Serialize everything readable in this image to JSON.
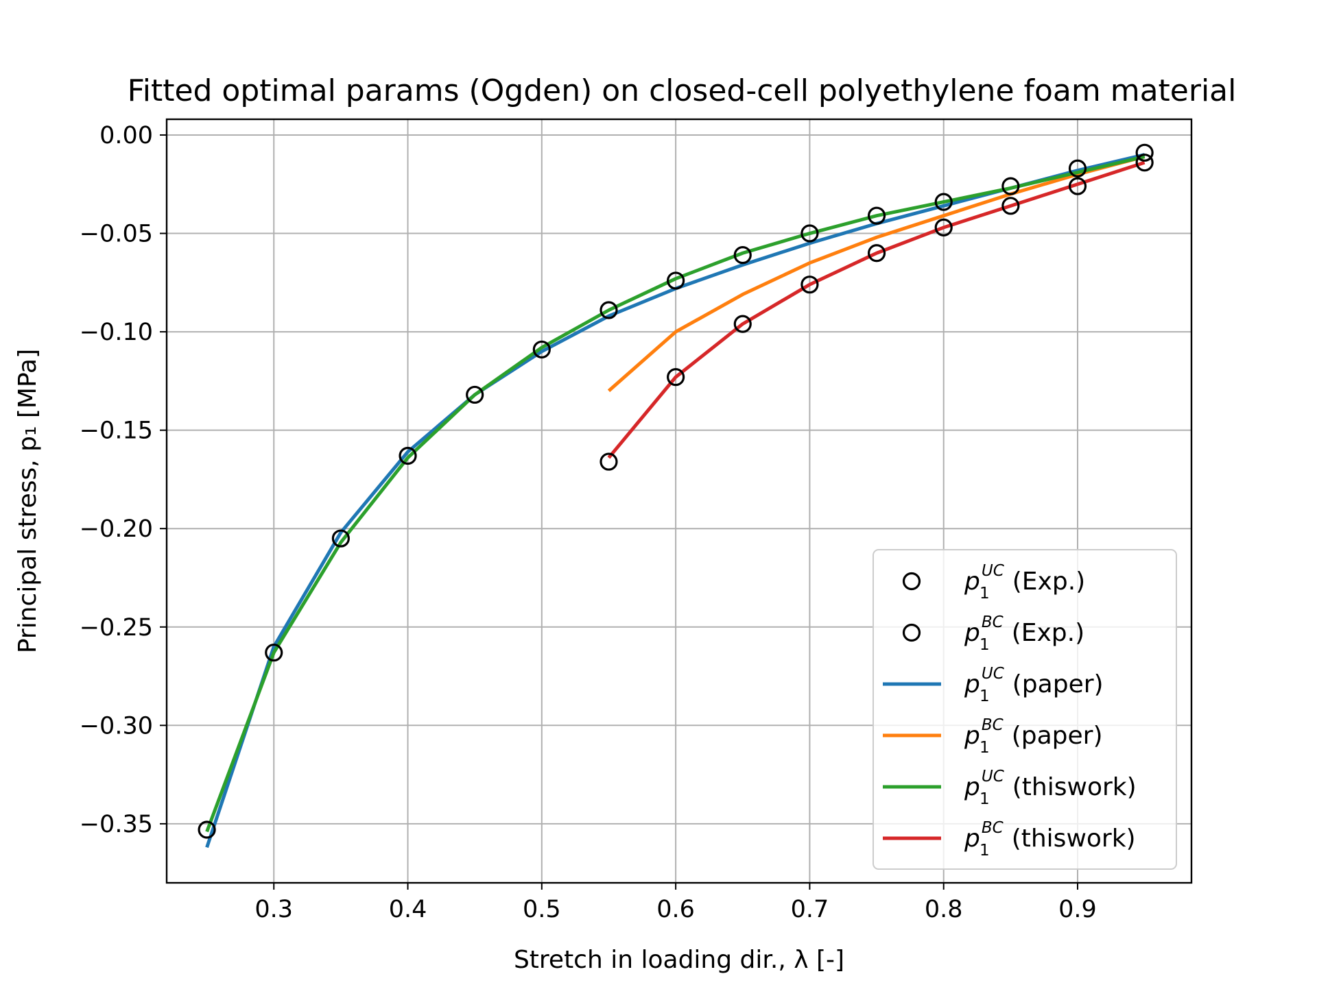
{
  "chart_data": {
    "type": "line",
    "title": "Fitted optimal params (Ogden) on closed-cell polyethylene foam material",
    "xlabel": "Stretch in loading dir., λ [-]",
    "ylabel": "Principal stress, p₁ [MPa]",
    "xlim": [
      0.22,
      0.985
    ],
    "ylim": [
      -0.38,
      0.008
    ],
    "xticks": [
      "0.3",
      "0.4",
      "0.5",
      "0.6",
      "0.7",
      "0.8",
      "0.9"
    ],
    "yticks": [
      "0.00",
      "−0.05",
      "−0.10",
      "−0.15",
      "−0.20",
      "−0.25",
      "−0.30",
      "−0.35"
    ],
    "grid": true,
    "legend_position": "lower-right",
    "series": [
      {
        "name": "p1UC (Exp.)",
        "label_base": "p",
        "label_sub": "1",
        "label_sup": "UC",
        "label_rest": "(Exp.)",
        "kind": "scatter",
        "color": "#000000",
        "x": [
          0.25,
          0.3,
          0.35,
          0.4,
          0.45,
          0.5,
          0.55,
          0.6,
          0.65,
          0.7,
          0.75,
          0.8,
          0.85,
          0.9,
          0.95
        ],
        "y": [
          -0.353,
          -0.263,
          -0.205,
          -0.163,
          -0.132,
          -0.109,
          -0.089,
          -0.074,
          -0.061,
          -0.05,
          -0.041,
          -0.034,
          -0.026,
          -0.017,
          -0.009
        ]
      },
      {
        "name": "p1BC (Exp.)",
        "label_base": "p",
        "label_sub": "1",
        "label_sup": "BC",
        "label_rest": "(Exp.)",
        "kind": "scatter",
        "color": "#000000",
        "x": [
          0.55,
          0.6,
          0.65,
          0.7,
          0.75,
          0.8,
          0.85,
          0.9,
          0.95
        ],
        "y": [
          -0.166,
          -0.123,
          -0.096,
          -0.076,
          -0.06,
          -0.047,
          -0.036,
          -0.026,
          -0.014
        ]
      },
      {
        "name": "p1UC (paper)",
        "label_base": "p",
        "label_sub": "1",
        "label_sup": "UC",
        "label_rest": "(paper)",
        "kind": "line",
        "color": "#1f77b4",
        "x": [
          0.25,
          0.3,
          0.35,
          0.4,
          0.45,
          0.5,
          0.55,
          0.6,
          0.65,
          0.7,
          0.75,
          0.8,
          0.85,
          0.9,
          0.95
        ],
        "y": [
          -0.362,
          -0.26,
          -0.202,
          -0.161,
          -0.132,
          -0.11,
          -0.092,
          -0.078,
          -0.066,
          -0.055,
          -0.045,
          -0.036,
          -0.027,
          -0.018,
          -0.01
        ]
      },
      {
        "name": "p1BC (paper)",
        "label_base": "p",
        "label_sub": "1",
        "label_sup": "BC",
        "label_rest": "(paper)",
        "kind": "line",
        "color": "#ff7f0e",
        "x": [
          0.55,
          0.6,
          0.65,
          0.7,
          0.75,
          0.8,
          0.85,
          0.9,
          0.95
        ],
        "y": [
          -0.13,
          -0.1,
          -0.081,
          -0.065,
          -0.052,
          -0.041,
          -0.03,
          -0.02,
          -0.011
        ]
      },
      {
        "name": "p1UC (thiswork)",
        "label_base": "p",
        "label_sub": "1",
        "label_sup": "UC",
        "label_rest": "(thiswork)",
        "kind": "line",
        "color": "#2ca02c",
        "x": [
          0.25,
          0.3,
          0.35,
          0.4,
          0.45,
          0.5,
          0.55,
          0.6,
          0.65,
          0.7,
          0.75,
          0.8,
          0.85,
          0.9,
          0.95
        ],
        "y": [
          -0.354,
          -0.263,
          -0.207,
          -0.164,
          -0.132,
          -0.108,
          -0.089,
          -0.073,
          -0.06,
          -0.05,
          -0.041,
          -0.034,
          -0.027,
          -0.019,
          -0.011
        ]
      },
      {
        "name": "p1BC (thiswork)",
        "label_base": "p",
        "label_sub": "1",
        "label_sup": "BC",
        "label_rest": "(thiswork)",
        "kind": "line",
        "color": "#d62728",
        "x": [
          0.55,
          0.6,
          0.65,
          0.7,
          0.75,
          0.8,
          0.85,
          0.9,
          0.95
        ],
        "y": [
          -0.164,
          -0.123,
          -0.096,
          -0.076,
          -0.06,
          -0.047,
          -0.036,
          -0.025,
          -0.014
        ]
      }
    ]
  }
}
